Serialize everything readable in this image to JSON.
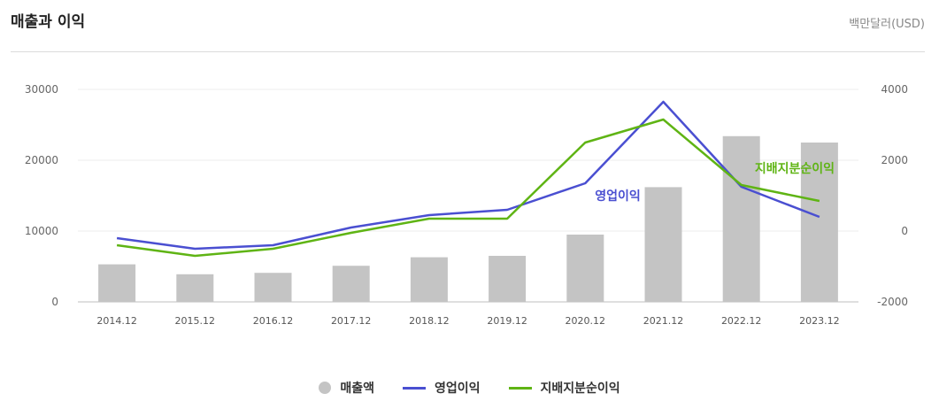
{
  "header": {
    "title": "매출과 이익",
    "unit": "백만달러(USD)"
  },
  "chart_data": {
    "type": "bar+line",
    "categories": [
      "2014.12",
      "2015.12",
      "2016.12",
      "2017.12",
      "2018.12",
      "2019.12",
      "2020.12",
      "2021.12",
      "2022.12",
      "2023.12"
    ],
    "left_axis": {
      "ticks": [
        "30000",
        "20000",
        "10000",
        "0"
      ],
      "ylim": [
        0,
        30000
      ]
    },
    "right_axis": {
      "ticks": [
        "4000",
        "2000",
        "0",
        "-2000"
      ],
      "ylim": [
        -2000,
        4000
      ]
    },
    "series": [
      {
        "name": "매출액",
        "type": "bar",
        "axis": "left",
        "color": "#c4c4c4",
        "values": [
          5300,
          3900,
          4100,
          5100,
          6300,
          6500,
          9500,
          16200,
          23400,
          22500
        ]
      },
      {
        "name": "영업이익",
        "type": "line",
        "axis": "right",
        "color": "#4a4fd1",
        "values": [
          -200,
          -500,
          -400,
          100,
          450,
          600,
          1350,
          3650,
          1250,
          400
        ]
      },
      {
        "name": "지배지분순이익",
        "type": "line",
        "axis": "right",
        "color": "#5fb414",
        "values": [
          -400,
          -700,
          -500,
          -50,
          350,
          350,
          2500,
          3150,
          1300,
          850
        ]
      }
    ],
    "annotations": [
      {
        "text": "영업이익",
        "color": "#4a4fd1"
      },
      {
        "text": "지배지분순이익",
        "color": "#5fb414"
      }
    ],
    "grid": true,
    "legend_position": "bottom"
  }
}
